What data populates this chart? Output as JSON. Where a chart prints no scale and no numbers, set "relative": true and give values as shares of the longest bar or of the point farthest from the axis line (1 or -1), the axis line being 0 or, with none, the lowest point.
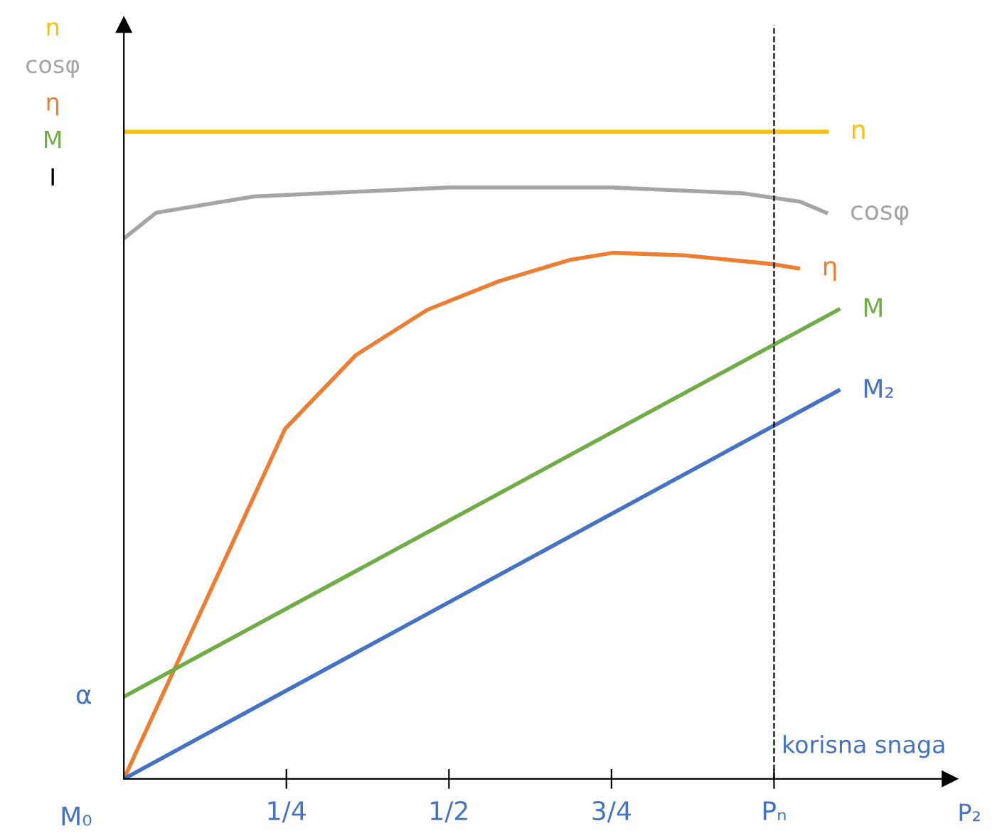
{
  "chart_data": {
    "type": "line",
    "relative": true,
    "xlabel": "P₂",
    "xlim": [
      0,
      1.27
    ],
    "xticks": [
      {
        "value": 0.25,
        "label": "1/4"
      },
      {
        "value": 0.5,
        "label": "1/2"
      },
      {
        "value": 0.75,
        "label": "3/4"
      },
      {
        "value": 1,
        "label": "Pₙ"
      }
    ],
    "series": [
      {
        "name": "n",
        "color": "#ffc000",
        "x": [
          0,
          1.081
        ],
        "values": [
          1,
          1
        ]
      },
      {
        "name": "cosφ",
        "color": "#a5a5a5",
        "x": [
          0,
          0.05,
          0.2,
          0.5,
          0.75,
          0.95,
          1.04,
          1.08
        ],
        "values": [
          0.835,
          0.875,
          0.9,
          0.914,
          0.914,
          0.905,
          0.892,
          0.875
        ]
      },
      {
        "name": "η",
        "color": "#ed7d31",
        "x": [
          0,
          0.248,
          0.357,
          0.467,
          0.577,
          0.686,
          0.752,
          0.862,
          0.993,
          1.037
        ],
        "values": [
          0,
          0.541,
          0.655,
          0.725,
          0.769,
          0.802,
          0.813,
          0.809,
          0.796,
          0.789
        ]
      },
      {
        "name": "M",
        "color": "#70ad47",
        "x": [
          0,
          1.099
        ],
        "values": [
          0.127,
          0.725
        ]
      },
      {
        "name": "M₂",
        "color": "#4472c4",
        "x": [
          0,
          1.099
        ],
        "values": [
          0,
          0.6
        ]
      }
    ],
    "ref_lines": [
      {
        "axis": "x",
        "value": 1,
        "label": "korisna snaga",
        "color": "#000000",
        "line_style": "dashed"
      }
    ],
    "annotations": [
      "n",
      "cosφ",
      "η",
      "M",
      "I",
      {
        "text": "α",
        "x": 0,
        "y": 0.127
      },
      {
        "text": "M₀",
        "x": 0,
        "y": 0
      }
    ],
    "legend": false,
    "grid": false,
    "line_style": "solid",
    "marker": "none"
  }
}
